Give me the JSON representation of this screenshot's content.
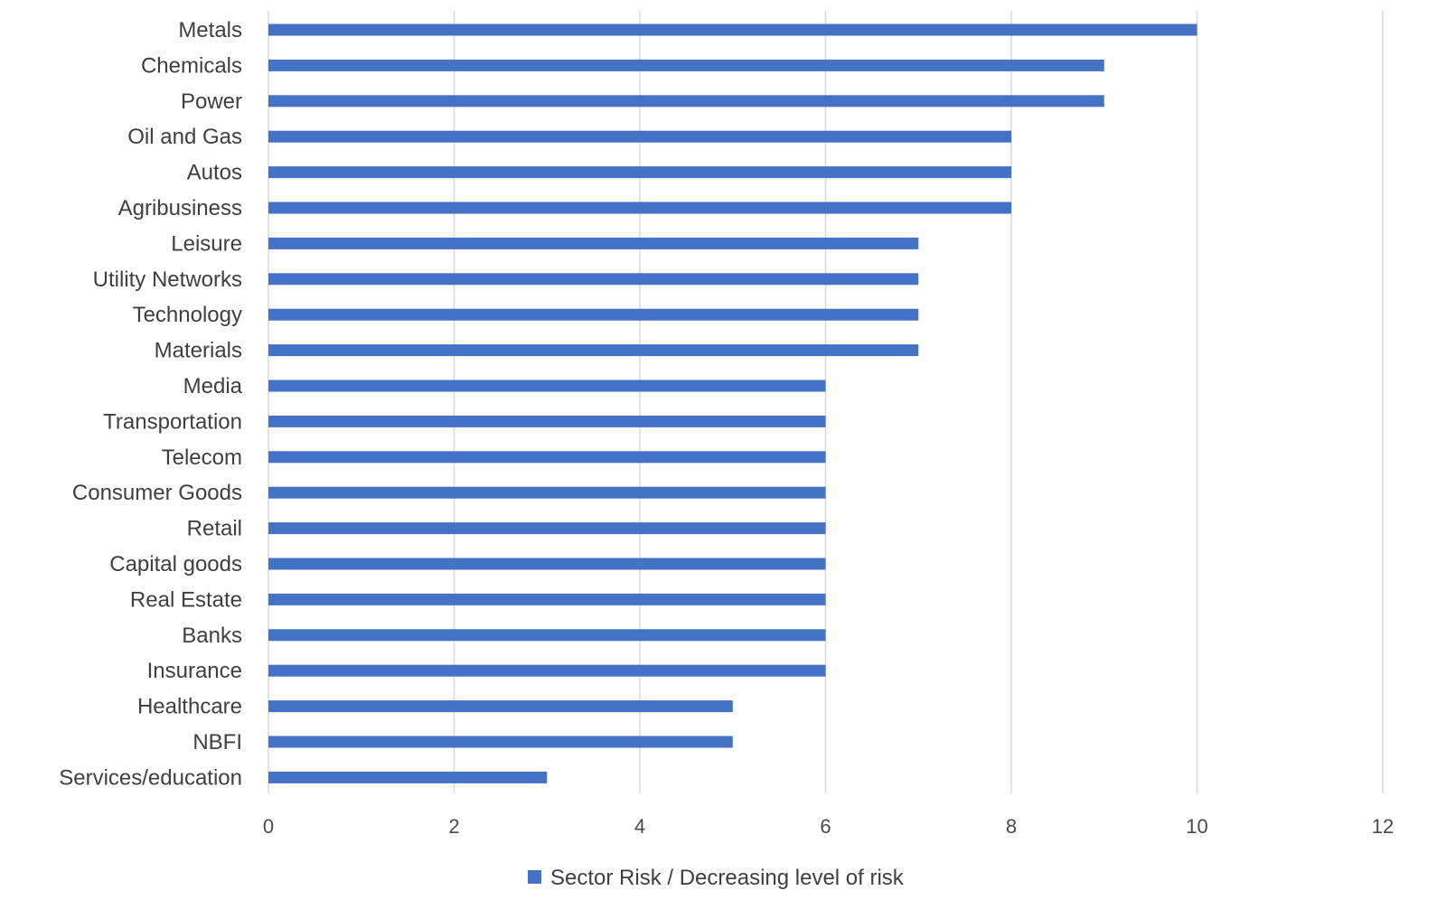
{
  "chart_data": {
    "type": "bar",
    "orientation": "horizontal",
    "categories": [
      "Metals",
      "Chemicals",
      "Power",
      "Oil and Gas",
      "Autos",
      "Agribusiness",
      "Leisure",
      "Utility Networks",
      "Technology",
      "Materials",
      "Media",
      "Transportation",
      "Telecom",
      "Consumer Goods",
      "Retail",
      "Capital goods",
      "Real Estate",
      "Banks",
      "Insurance",
      "Healthcare",
      "NBFI",
      "Services/education"
    ],
    "series": [
      {
        "name": "Sector Risk / Decreasing level of risk",
        "color": "#4472c4",
        "values": [
          10,
          9,
          9,
          8,
          8,
          8,
          7,
          7,
          7,
          7,
          6,
          6,
          6,
          6,
          6,
          6,
          6,
          6,
          6,
          5,
          5,
          3
        ]
      }
    ],
    "xlim": [
      0,
      12
    ],
    "xticks": [
      "0",
      "2",
      "4",
      "6",
      "8",
      "10",
      "12"
    ],
    "grid": true,
    "legend_position": "bottom",
    "gridline_color": "#d9d9d9"
  }
}
